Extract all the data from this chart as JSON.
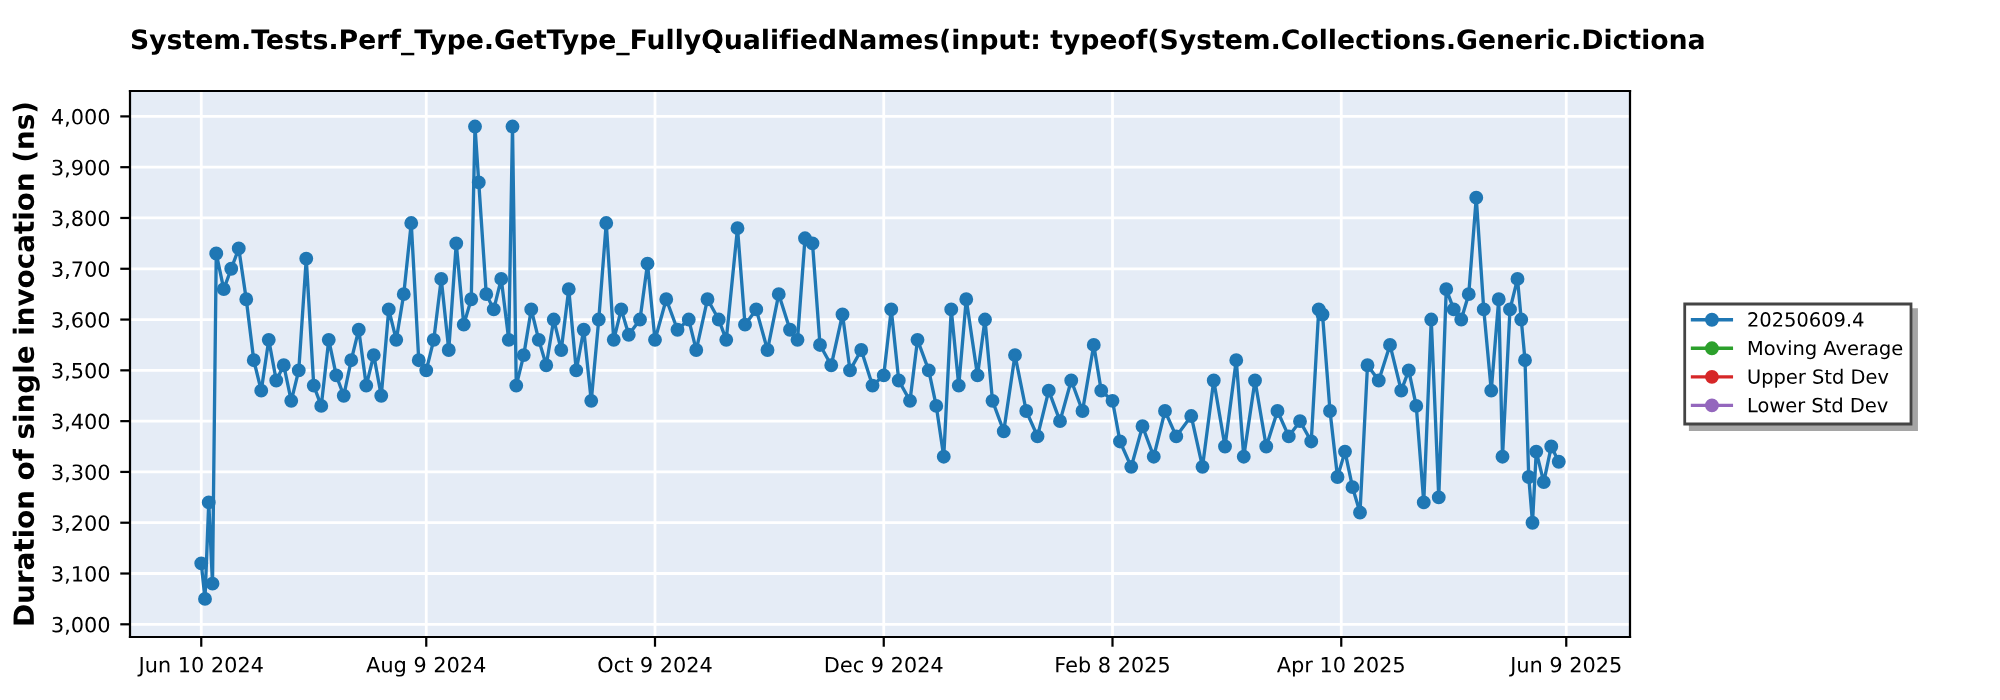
{
  "chart_data": {
    "type": "line",
    "title": "System.Tests.Perf_Type.GetType_FullyQualifiedNames(input: typeof(System.Collections.Generic.Dictiona",
    "ylabel": "Duration of single invocation (ns)",
    "x": [
      "2024-06-10",
      "2024-06-11",
      "2024-06-12",
      "2024-06-13",
      "2024-06-14",
      "2024-06-16",
      "2024-06-18",
      "2024-06-20",
      "2024-06-22",
      "2024-06-24",
      "2024-06-26",
      "2024-06-28",
      "2024-06-30",
      "2024-07-02",
      "2024-07-04",
      "2024-07-06",
      "2024-07-08",
      "2024-07-10",
      "2024-07-12",
      "2024-07-14",
      "2024-07-16",
      "2024-07-18",
      "2024-07-20",
      "2024-07-22",
      "2024-07-24",
      "2024-07-26",
      "2024-07-28",
      "2024-07-30",
      "2024-08-01",
      "2024-08-03",
      "2024-08-05",
      "2024-08-07",
      "2024-08-09",
      "2024-08-11",
      "2024-08-13",
      "2024-08-15",
      "2024-08-17",
      "2024-08-19",
      "2024-08-21",
      "2024-08-22",
      "2024-08-23",
      "2024-08-25",
      "2024-08-27",
      "2024-08-29",
      "2024-08-31",
      "2024-09-01",
      "2024-09-02",
      "2024-09-04",
      "2024-09-06",
      "2024-09-08",
      "2024-09-10",
      "2024-09-12",
      "2024-09-14",
      "2024-09-16",
      "2024-09-18",
      "2024-09-20",
      "2024-09-22",
      "2024-09-24",
      "2024-09-26",
      "2024-09-28",
      "2024-09-30",
      "2024-10-02",
      "2024-10-05",
      "2024-10-07",
      "2024-10-09",
      "2024-10-12",
      "2024-10-15",
      "2024-10-18",
      "2024-10-20",
      "2024-10-23",
      "2024-10-26",
      "2024-10-28",
      "2024-10-31",
      "2024-11-02",
      "2024-11-05",
      "2024-11-08",
      "2024-11-11",
      "2024-11-14",
      "2024-11-16",
      "2024-11-18",
      "2024-11-20",
      "2024-11-22",
      "2024-11-25",
      "2024-11-28",
      "2024-11-30",
      "2024-12-03",
      "2024-12-06",
      "2024-12-09",
      "2024-12-11",
      "2024-12-13",
      "2024-12-16",
      "2024-12-18",
      "2024-12-21",
      "2024-12-23",
      "2024-12-25",
      "2024-12-27",
      "2024-12-29",
      "2024-12-31",
      "2025-01-03",
      "2025-01-05",
      "2025-01-07",
      "2025-01-10",
      "2025-01-13",
      "2025-01-16",
      "2025-01-19",
      "2025-01-22",
      "2025-01-25",
      "2025-01-28",
      "2025-01-31",
      "2025-02-03",
      "2025-02-05",
      "2025-02-08",
      "2025-02-10",
      "2025-02-13",
      "2025-02-16",
      "2025-02-19",
      "2025-02-22",
      "2025-02-25",
      "2025-03-01",
      "2025-03-04",
      "2025-03-07",
      "2025-03-10",
      "2025-03-13",
      "2025-03-15",
      "2025-03-18",
      "2025-03-21",
      "2025-03-24",
      "2025-03-27",
      "2025-03-30",
      "2025-04-02",
      "2025-04-04",
      "2025-04-05",
      "2025-04-07",
      "2025-04-09",
      "2025-04-11",
      "2025-04-13",
      "2025-04-15",
      "2025-04-17",
      "2025-04-20",
      "2025-04-23",
      "2025-04-26",
      "2025-04-28",
      "2025-04-30",
      "2025-05-02",
      "2025-05-04",
      "2025-05-06",
      "2025-05-08",
      "2025-05-10",
      "2025-05-12",
      "2025-05-14",
      "2025-05-16",
      "2025-05-18",
      "2025-05-20",
      "2025-05-22",
      "2025-05-23",
      "2025-05-25",
      "2025-05-27",
      "2025-05-28",
      "2025-05-29",
      "2025-05-30",
      "2025-05-31",
      "2025-06-01",
      "2025-06-03",
      "2025-06-05",
      "2025-06-07"
    ],
    "series": [
      {
        "name": "20250609.4",
        "color": "#1f77b4",
        "values": [
          3120,
          3050,
          3240,
          3080,
          3730,
          3660,
          3700,
          3740,
          3640,
          3520,
          3460,
          3560,
          3480,
          3510,
          3440,
          3500,
          3720,
          3470,
          3430,
          3560,
          3490,
          3450,
          3520,
          3580,
          3470,
          3530,
          3450,
          3620,
          3560,
          3650,
          3790,
          3520,
          3500,
          3560,
          3680,
          3540,
          3750,
          3590,
          3640,
          3980,
          3870,
          3650,
          3620,
          3680,
          3560,
          3980,
          3470,
          3530,
          3620,
          3560,
          3510,
          3600,
          3540,
          3660,
          3500,
          3580,
          3440,
          3600,
          3790,
          3560,
          3620,
          3570,
          3600,
          3710,
          3560,
          3640,
          3580,
          3600,
          3540,
          3640,
          3600,
          3560,
          3780,
          3590,
          3620,
          3540,
          3650,
          3580,
          3560,
          3760,
          3750,
          3550,
          3510,
          3610,
          3500,
          3540,
          3470,
          3490,
          3620,
          3480,
          3440,
          3560,
          3500,
          3430,
          3330,
          3620,
          3470,
          3640,
          3490,
          3600,
          3440,
          3380,
          3530,
          3420,
          3370,
          3460,
          3400,
          3480,
          3420,
          3550,
          3460,
          3440,
          3360,
          3310,
          3390,
          3330,
          3420,
          3370,
          3410,
          3310,
          3480,
          3350,
          3520,
          3330,
          3480,
          3350,
          3420,
          3370,
          3400,
          3360,
          3620,
          3610,
          3420,
          3290,
          3340,
          3270,
          3220,
          3510,
          3480,
          3550,
          3460,
          3500,
          3430,
          3240,
          3600,
          3250,
          3660,
          3620,
          3600,
          3650,
          3840,
          3620,
          3460,
          3640,
          3330,
          3620,
          3680,
          3600,
          3520,
          3290,
          3200,
          3340,
          3280,
          3350,
          3320
        ]
      },
      {
        "name": "Moving Average",
        "color": "#2ca02c",
        "values": [
          null,
          null,
          null,
          null,
          null,
          null,
          null,
          null,
          null,
          null,
          null,
          null,
          null,
          null,
          null,
          null,
          null,
          null,
          null,
          null,
          null,
          null,
          null,
          null,
          null,
          null,
          null,
          null,
          null,
          null,
          null,
          null,
          null,
          null,
          null,
          null,
          null,
          null,
          null,
          null,
          null,
          null,
          null,
          null,
          null,
          null,
          null,
          null,
          null,
          null,
          null,
          null,
          null,
          null,
          null,
          null,
          null,
          null,
          null,
          null,
          null,
          null,
          null,
          null,
          null,
          null,
          null,
          null,
          null,
          null,
          null,
          null,
          null,
          null,
          null,
          null,
          null,
          null,
          null,
          null,
          null,
          null,
          null,
          null,
          null,
          null,
          null,
          null,
          null,
          null,
          null,
          null,
          null,
          null,
          null,
          null,
          null,
          null,
          null,
          null,
          null,
          null,
          null,
          null,
          null,
          null,
          null,
          null,
          null,
          null,
          null,
          null,
          null,
          null,
          null,
          null,
          null,
          null,
          null,
          null,
          null,
          null,
          null,
          null,
          null,
          null,
          null,
          null,
          null,
          null,
          null,
          null,
          null,
          null,
          null,
          null,
          null,
          null,
          null,
          null,
          null,
          null,
          null,
          null,
          null,
          null,
          null,
          null,
          null,
          null,
          null,
          null,
          null,
          null,
          null,
          null,
          null,
          null,
          null,
          null,
          null,
          null,
          null,
          null,
          null
        ]
      },
      {
        "name": "Upper Std Dev",
        "color": "#d62728",
        "values": [
          null,
          null,
          null,
          null,
          null,
          null,
          null,
          null,
          null,
          null,
          null,
          null,
          null,
          null,
          null,
          null,
          null,
          null,
          null,
          null,
          null,
          null,
          null,
          null,
          null,
          null,
          null,
          null,
          null,
          null,
          null,
          null,
          null,
          null,
          null,
          null,
          null,
          null,
          null,
          null,
          null,
          null,
          null,
          null,
          null,
          null,
          null,
          null,
          null,
          null,
          null,
          null,
          null,
          null,
          null,
          null,
          null,
          null,
          null,
          null,
          null,
          null,
          null,
          null,
          null,
          null,
          null,
          null,
          null,
          null,
          null,
          null,
          null,
          null,
          null,
          null,
          null,
          null,
          null,
          null,
          null,
          null,
          null,
          null,
          null,
          null,
          null,
          null,
          null,
          null,
          null,
          null,
          null,
          null,
          null,
          null,
          null,
          null,
          null,
          null,
          null,
          null,
          null,
          null,
          null,
          null,
          null,
          null,
          null,
          null,
          null,
          null,
          null,
          null,
          null,
          null,
          null,
          null,
          null,
          null,
          null,
          null,
          null,
          null,
          null,
          null,
          null,
          null,
          null,
          null,
          null,
          null,
          null,
          null,
          null,
          null,
          null,
          null,
          null,
          null,
          null,
          null,
          null,
          null,
          null,
          null,
          null,
          null,
          null,
          null,
          null,
          null,
          null,
          null,
          null,
          null,
          null,
          null,
          null,
          null,
          null,
          null,
          null,
          null,
          null
        ]
      },
      {
        "name": "Lower Std Dev",
        "color": "#9467bd",
        "values": [
          null,
          null,
          null,
          null,
          null,
          null,
          null,
          null,
          null,
          null,
          null,
          null,
          null,
          null,
          null,
          null,
          null,
          null,
          null,
          null,
          null,
          null,
          null,
          null,
          null,
          null,
          null,
          null,
          null,
          null,
          null,
          null,
          null,
          null,
          null,
          null,
          null,
          null,
          null,
          null,
          null,
          null,
          null,
          null,
          null,
          null,
          null,
          null,
          null,
          null,
          null,
          null,
          null,
          null,
          null,
          null,
          null,
          null,
          null,
          null,
          null,
          null,
          null,
          null,
          null,
          null,
          null,
          null,
          null,
          null,
          null,
          null,
          null,
          null,
          null,
          null,
          null,
          null,
          null,
          null,
          null,
          null,
          null,
          null,
          null,
          null,
          null,
          null,
          null,
          null,
          null,
          null,
          null,
          null,
          null,
          null,
          null,
          null,
          null,
          null,
          null,
          null,
          null,
          null,
          null,
          null,
          null,
          null,
          null,
          null,
          null,
          null,
          null,
          null,
          null,
          null,
          null,
          null,
          null,
          null,
          null,
          null,
          null,
          null,
          null,
          null,
          null,
          null,
          null,
          null,
          null,
          null,
          null,
          null,
          null,
          null,
          null,
          null,
          null,
          null,
          null,
          null,
          null,
          null,
          null,
          null,
          null,
          null,
          null,
          null,
          null,
          null,
          null,
          null,
          null,
          null,
          null,
          null,
          null,
          null,
          null,
          null,
          null,
          null,
          null
        ]
      }
    ],
    "xlim": [
      "2024-05-22",
      "2025-06-26"
    ],
    "xticks": [
      {
        "value": "2024-06-10",
        "label": "Jun 10 2024"
      },
      {
        "value": "2024-08-09",
        "label": "Aug 9 2024"
      },
      {
        "value": "2024-10-09",
        "label": "Oct 9 2024"
      },
      {
        "value": "2024-12-09",
        "label": "Dec 9 2024"
      },
      {
        "value": "2025-02-08",
        "label": "Feb 8 2025"
      },
      {
        "value": "2025-04-10",
        "label": "Apr 10 2025"
      },
      {
        "value": "2025-06-09",
        "label": "Jun 9 2025"
      }
    ],
    "ylim": [
      2975,
      4050
    ],
    "yticks": [
      {
        "value": 3000,
        "label": "3,000"
      },
      {
        "value": 3100,
        "label": "3,100"
      },
      {
        "value": 3200,
        "label": "3,200"
      },
      {
        "value": 3300,
        "label": "3,300"
      },
      {
        "value": 3400,
        "label": "3,400"
      },
      {
        "value": 3500,
        "label": "3,500"
      },
      {
        "value": 3600,
        "label": "3,600"
      },
      {
        "value": 3700,
        "label": "3,700"
      },
      {
        "value": 3800,
        "label": "3,800"
      },
      {
        "value": 3900,
        "label": "3,900"
      },
      {
        "value": 4000,
        "label": "4,000"
      }
    ],
    "grid": true,
    "legend": "right",
    "marker": "circle",
    "line_style": "solid"
  }
}
